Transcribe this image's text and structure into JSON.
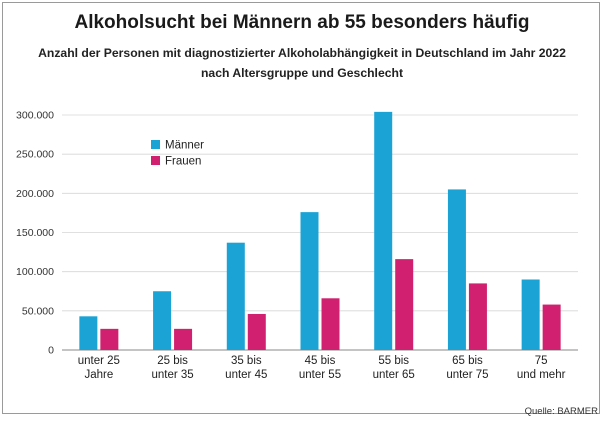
{
  "title": "Alkoholsucht bei Männern ab 55 besonders häufig",
  "subtitle_line1": "Anzahl der Personen mit diagnostizierter Alkoholabhängigkeit in Deutschland im Jahr 2022",
  "subtitle_line2": "nach Altersgruppe und Geschlecht",
  "source": "Quelle: BARMER",
  "colors": {
    "maenner": "#1aa3d4",
    "frauen": "#d0206f",
    "grid": "#d6d6d6",
    "axis": "#888888"
  },
  "chart_data": {
    "type": "bar",
    "title": "Alkoholsucht bei Männern ab 55 besonders häufig",
    "subtitle": "Anzahl der Personen mit diagnostizierter Alkoholabhängigkeit in Deutschland im Jahr 2022 nach Altersgruppe und Geschlecht",
    "categories": [
      [
        "unter 25",
        "Jahre"
      ],
      [
        "25 bis",
        "unter 35"
      ],
      [
        "35 bis",
        "unter 45"
      ],
      [
        "45 bis",
        "unter 55"
      ],
      [
        "55 bis",
        "unter 65"
      ],
      [
        "65 bis",
        "unter 75"
      ],
      [
        "75",
        "und mehr"
      ]
    ],
    "series": [
      {
        "name": "Männer",
        "values": [
          43000,
          75000,
          137000,
          176000,
          304000,
          205000,
          90000
        ]
      },
      {
        "name": "Frauen",
        "values": [
          27000,
          27000,
          46000,
          66000,
          116000,
          85000,
          58000
        ]
      }
    ],
    "ylim": [
      0,
      300000
    ],
    "yticks": [
      0,
      50000,
      100000,
      150000,
      200000,
      250000,
      300000
    ],
    "ytick_labels": [
      "0",
      "50.000",
      "100.000",
      "150.000",
      "200.000",
      "250.000",
      "300.000"
    ],
    "xlabel": "",
    "ylabel": "",
    "grid": true,
    "legend_position": "top-left"
  }
}
